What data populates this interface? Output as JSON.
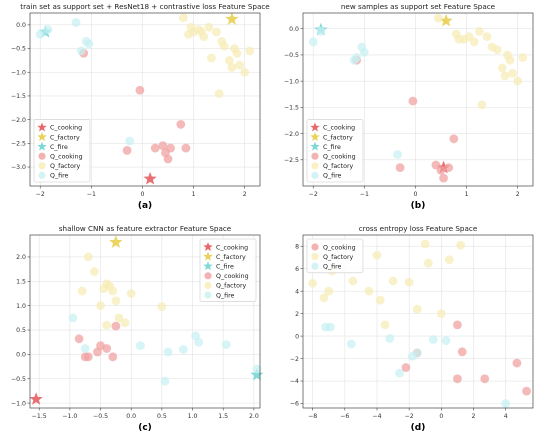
{
  "chart_data": [
    {
      "type": "scatter",
      "panel_label": "(a)",
      "title": "train set as support set + ResNet18 + contrastive loss Feature Space",
      "xlabel": "",
      "ylabel": "",
      "xlim": [
        -2.2,
        2.3
      ],
      "ylim": [
        -3.4,
        0.25
      ],
      "xticks": [
        -2,
        -1,
        0,
        1,
        2
      ],
      "yticks": [
        -3.0,
        -2.5,
        -2.0,
        -1.5,
        -1.0,
        -0.5,
        0.0
      ],
      "grid": true,
      "legend": "lower-left",
      "series": [
        {
          "name": "C_cooking",
          "marker": "star",
          "color": "#e8676a",
          "x": [
            0.15
          ],
          "y": [
            -3.25
          ]
        },
        {
          "name": "C_factory",
          "marker": "star",
          "color": "#e9d25a",
          "x": [
            1.75
          ],
          "y": [
            0.12
          ]
        },
        {
          "name": "C_fire",
          "marker": "star",
          "color": "#7fd8d8",
          "x": [
            -1.9
          ],
          "y": [
            -0.15
          ]
        },
        {
          "name": "Q_cooking",
          "marker": "circle",
          "color": "#f0a0a0",
          "x": [
            -1.15,
            -0.05,
            0.25,
            0.4,
            0.45,
            0.55,
            0.75,
            0.85,
            0.5,
            -0.3
          ],
          "y": [
            -0.6,
            -1.38,
            -2.6,
            -2.55,
            -2.7,
            -2.6,
            -2.1,
            -2.6,
            -2.83,
            -2.65
          ]
        },
        {
          "name": "Q_factory",
          "marker": "circle",
          "color": "#f7ecb5",
          "x": [
            0.8,
            1.0,
            1.1,
            0.9,
            1.2,
            1.35,
            1.5,
            1.55,
            1.6,
            1.7,
            1.8,
            1.9,
            2.0,
            2.1,
            1.45,
            1.3,
            0.95,
            1.15,
            1.75,
            1.85
          ],
          "y": [
            0.15,
            -0.15,
            -0.1,
            -0.2,
            -0.25,
            -0.7,
            -1.45,
            -0.35,
            -0.45,
            -0.75,
            -0.5,
            -0.85,
            -1.0,
            -0.55,
            -0.15,
            -0.05,
            -0.05,
            -0.15,
            -0.9,
            -0.6
          ]
        },
        {
          "name": "Q_fire",
          "marker": "circle",
          "color": "#c8f0f2",
          "x": [
            -2.0,
            -1.85,
            -1.3,
            -1.1,
            -1.05,
            -1.2,
            -0.25
          ],
          "y": [
            -0.2,
            -0.1,
            0.05,
            -0.35,
            -0.4,
            -0.55,
            -2.45
          ]
        }
      ]
    },
    {
      "type": "scatter",
      "panel_label": "(b)",
      "title": "new samples as support set Feature Space",
      "xlabel": "",
      "ylabel": "",
      "xlim": [
        -2.2,
        2.3
      ],
      "ylim": [
        -3.0,
        0.3
      ],
      "xticks": [
        -2,
        -1,
        0,
        1,
        2
      ],
      "yticks": [
        -2.5,
        -2.0,
        -1.5,
        -1.0,
        -0.5,
        0.0
      ],
      "grid": true,
      "legend": "lower-left",
      "series": [
        {
          "name": "C_cooking",
          "marker": "star",
          "color": "#e8676a",
          "x": [
            0.55
          ],
          "y": [
            -2.65
          ]
        },
        {
          "name": "C_factory",
          "marker": "star",
          "color": "#e9d25a",
          "x": [
            0.6
          ],
          "y": [
            0.15
          ]
        },
        {
          "name": "C_fire",
          "marker": "star",
          "color": "#7fd8d8",
          "x": [
            -1.85
          ],
          "y": [
            -0.02
          ]
        },
        {
          "name": "Q_cooking",
          "marker": "circle",
          "color": "#f0a0a0",
          "x": [
            -1.15,
            -0.05,
            -0.3,
            0.4,
            0.5,
            0.65,
            0.75,
            0.55
          ],
          "y": [
            -0.6,
            -1.38,
            -2.65,
            -2.6,
            -2.7,
            -2.65,
            -2.1,
            -2.85
          ]
        },
        {
          "name": "Q_factory",
          "marker": "circle",
          "color": "#f7ecb5",
          "x": [
            0.45,
            0.8,
            0.95,
            1.05,
            1.15,
            1.3,
            1.5,
            1.6,
            1.7,
            1.8,
            1.9,
            2.0,
            2.1,
            1.4,
            0.85,
            1.25,
            1.75,
            1.85
          ],
          "y": [
            0.2,
            -0.1,
            -0.2,
            -0.15,
            -0.25,
            -1.45,
            -0.35,
            -0.4,
            -0.75,
            -0.5,
            -0.85,
            -1.0,
            -0.55,
            -0.15,
            -0.2,
            -0.05,
            -0.9,
            -0.6
          ]
        },
        {
          "name": "Q_fire",
          "marker": "circle",
          "color": "#c8f0f2",
          "x": [
            -2.0,
            -1.85,
            -1.05,
            -1.15,
            -1.0,
            -1.2,
            -0.35
          ],
          "y": [
            -0.25,
            -0.05,
            -0.35,
            -0.55,
            -0.45,
            -0.6,
            -2.4
          ]
        }
      ]
    },
    {
      "type": "scatter",
      "panel_label": "(c)",
      "title": "shallow CNN as feature extractor Feature Space",
      "xlabel": "",
      "ylabel": "",
      "xlim": [
        -1.65,
        2.1
      ],
      "ylim": [
        -1.1,
        2.45
      ],
      "xticks": [
        -1.5,
        -1.0,
        -0.5,
        0.0,
        0.5,
        1.0,
        1.5,
        2.0
      ],
      "yticks": [
        -1.0,
        -0.5,
        0.0,
        0.5,
        1.0,
        1.5,
        2.0
      ],
      "grid": true,
      "legend": "upper-right",
      "series": [
        {
          "name": "C_cooking",
          "marker": "star",
          "color": "#e8676a",
          "x": [
            -1.55
          ],
          "y": [
            -0.92
          ]
        },
        {
          "name": "C_factory",
          "marker": "star",
          "color": "#e9d25a",
          "x": [
            -0.25
          ],
          "y": [
            2.3
          ]
        },
        {
          "name": "C_fire",
          "marker": "star",
          "color": "#7fd8d8",
          "x": [
            2.05
          ],
          "y": [
            -0.42
          ]
        },
        {
          "name": "Q_cooking",
          "marker": "circle",
          "color": "#f0a0a0",
          "x": [
            -0.85,
            -0.75,
            -0.7,
            -0.5,
            -0.4,
            -0.3,
            -0.25,
            -0.55
          ],
          "y": [
            0.32,
            -0.05,
            -0.05,
            0.18,
            0.12,
            -0.05,
            0.58,
            0.05
          ]
        },
        {
          "name": "Q_factory",
          "marker": "circle",
          "color": "#f7ecb5",
          "x": [
            -0.8,
            -0.7,
            -0.5,
            -0.45,
            -0.4,
            -0.35,
            -0.3,
            -0.25,
            -0.2,
            -0.1,
            0.0,
            0.5,
            -0.4,
            -0.6
          ],
          "y": [
            1.3,
            2.0,
            1.0,
            1.35,
            1.45,
            1.4,
            1.3,
            1.1,
            0.75,
            0.65,
            1.25,
            0.98,
            0.6,
            1.7
          ]
        },
        {
          "name": "Q_fire",
          "marker": "circle",
          "color": "#c8f0f2",
          "x": [
            -0.95,
            -0.75,
            0.15,
            0.55,
            0.6,
            0.85,
            1.05,
            1.1,
            1.55,
            2.05
          ],
          "y": [
            0.75,
            0.12,
            0.18,
            -0.55,
            0.05,
            0.1,
            0.38,
            0.25,
            0.2,
            -0.3
          ]
        }
      ]
    },
    {
      "type": "scatter",
      "panel_label": "(d)",
      "title": "cross entropy loss Feature Space",
      "xlabel": "",
      "ylabel": "",
      "xlim": [
        -8.6,
        5.7
      ],
      "ylim": [
        -6.4,
        9.0
      ],
      "xticks": [
        -8,
        -6,
        -4,
        -2,
        0,
        2,
        4
      ],
      "yticks": [
        -6,
        -4,
        -2,
        0,
        2,
        4,
        6,
        8
      ],
      "grid": true,
      "legend": "upper-left",
      "series": [
        {
          "name": "Q_cooking",
          "marker": "circle",
          "color": "#f0a0a0",
          "x": [
            -2.2,
            1.0,
            1.0,
            1.3,
            2.7,
            4.7,
            5.3,
            -1.5
          ],
          "y": [
            -2.8,
            1.0,
            -3.8,
            -1.4,
            -3.8,
            -2.4,
            -4.9,
            -1.5
          ]
        },
        {
          "name": "Q_factory",
          "marker": "circle",
          "color": "#f7ecb5",
          "x": [
            -8.0,
            -7.3,
            -7.0,
            -5.5,
            -4.5,
            -4.0,
            -3.8,
            -3.5,
            -3.0,
            -2.0,
            -1.5,
            -1.0,
            0.0,
            0.5,
            1.2,
            -6.8,
            -0.8
          ],
          "y": [
            4.7,
            3.4,
            4.0,
            4.9,
            4.0,
            7.2,
            3.2,
            1.0,
            4.9,
            4.8,
            2.4,
            8.2,
            2.0,
            6.8,
            8.1,
            5.8,
            6.5
          ]
        },
        {
          "name": "Q_fire",
          "marker": "circle",
          "color": "#c8f0f2",
          "x": [
            -7.2,
            -6.9,
            -5.6,
            -3.2,
            -2.6,
            -1.8,
            -1.5,
            -0.5,
            0.3,
            4.0
          ],
          "y": [
            0.8,
            0.8,
            -0.7,
            -0.2,
            -3.3,
            -1.8,
            -1.5,
            -0.3,
            -0.4,
            -6.0
          ]
        }
      ]
    }
  ]
}
